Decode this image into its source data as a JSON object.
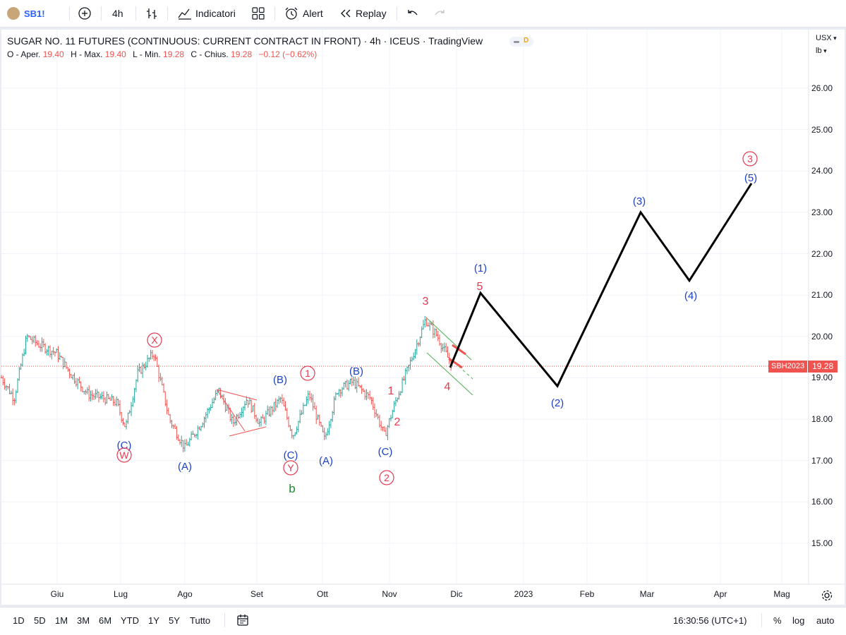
{
  "toolbar": {
    "symbol": "SB1!",
    "add_symbol_icon": "plus-circle-icon",
    "interval": "4h",
    "bar_style_icon": "bars-icon",
    "indicators_label": "Indicatori",
    "templates_icon": "grid-icon",
    "alert_label": "Alert",
    "replay_label": "Replay",
    "undo_icon": "undo-icon",
    "redo_icon": "redo-icon"
  },
  "legend": {
    "title": "SUGAR NO. 11 FUTURES (CONTINUOUS: CURRENT CONTRACT IN FRONT) · 4h · ICEUS · TradingView",
    "badge_letter": "D",
    "o_label": "O - Aper.",
    "o_value": "19.40",
    "h_label": "H - Max.",
    "h_value": "19.40",
    "l_label": "L - Min.",
    "l_value": "19.28",
    "c_label": "C - Chius.",
    "c_value": "19.28",
    "change": "−0.12 (−0.62%)"
  },
  "price_axis": {
    "currency": "USX",
    "unit": "lb",
    "ticks": [
      "26.00",
      "25.00",
      "24.00",
      "23.00",
      "22.00",
      "21.00",
      "20.00",
      "19.00",
      "18.00",
      "17.00",
      "16.00",
      "15.00"
    ],
    "last_symbol": "SBH2023",
    "last_price": "19.28"
  },
  "time_axis": {
    "ticks": [
      "Giu",
      "Lug",
      "Ago",
      "Set",
      "Ott",
      "Nov",
      "Dic",
      "2023",
      "Feb",
      "Mar",
      "Apr",
      "Mag"
    ]
  },
  "chart_data": {
    "type": "line",
    "y_range": [
      14.0,
      26.7
    ],
    "colors": {
      "up": "#26a69a",
      "down": "#ef5350",
      "projection": "#000000",
      "wave_blue": "#1e40c8",
      "wave_red": "#e53950",
      "wave_green": "#1b8a2e"
    },
    "projection": {
      "x": [
        "end Nov",
        "early Dic",
        "mid Gen 2023",
        "end Feb",
        "mid Mar",
        "mid Apr"
      ],
      "y": [
        19.25,
        21.05,
        18.8,
        23.0,
        21.35,
        23.7
      ]
    },
    "wave_labels": {
      "blue": [
        "(C)",
        "(A)",
        "(B)",
        "(C)",
        "(A)",
        "(B)",
        "(C)",
        "(1)",
        "(2)",
        "(3)",
        "(4)",
        "(5)"
      ],
      "red": [
        "1",
        "2",
        "3",
        "4",
        "5"
      ],
      "red_circled": [
        "X",
        "W",
        "Y",
        "1",
        "2",
        "3"
      ],
      "green": [
        "b"
      ]
    }
  },
  "bottombar": {
    "ranges": [
      "1D",
      "5D",
      "1M",
      "3M",
      "6M",
      "YTD",
      "1Y",
      "5Y",
      "Tutto"
    ],
    "calendar_icon": "calendar-icon",
    "clock": "16:30:56 (UTC+1)",
    "percent": "%",
    "log": "log",
    "auto": "auto"
  }
}
